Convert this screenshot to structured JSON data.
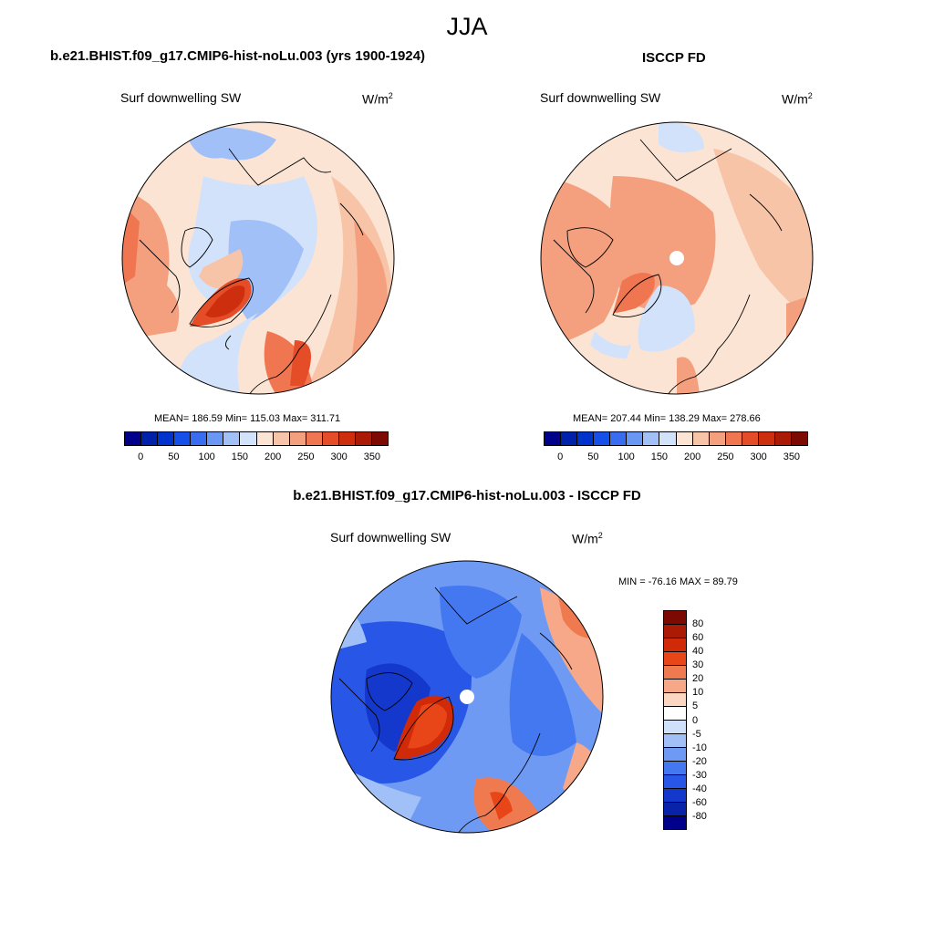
{
  "main_title": "JJA",
  "panel1": {
    "title": "b.e21.BHIST.f09_g17.CMIP6-hist-noLu.003 (yrs 1900-1924)",
    "variable": "Surf downwelling SW",
    "units": "W/m",
    "units_exp": "2",
    "stats": "MEAN= 186.59  Min= 115.03  Max= 311.71"
  },
  "panel2": {
    "title": "ISCCP FD",
    "variable": "Surf downwelling SW",
    "units": "W/m",
    "units_exp": "2",
    "stats": "MEAN= 207.44  Min= 138.29  Max= 278.66"
  },
  "panel3": {
    "title": "b.e21.BHIST.f09_g17.CMIP6-hist-noLu.003 - ISCCP FD",
    "variable": "Surf downwelling SW",
    "units": "W/m",
    "units_exp": "2",
    "stats": "MIN = -76.16 MAX =  89.79"
  },
  "colorbar_abs": {
    "colors": [
      "#00008b",
      "#0022aa",
      "#0033cc",
      "#1650e8",
      "#3a6cf0",
      "#6a96f4",
      "#a2c0f8",
      "#d2e2fb",
      "#fbe4d4",
      "#f8c4a8",
      "#f4a07e",
      "#ef7650",
      "#e44d28",
      "#cc2e0e",
      "#aa1a04",
      "#7d0a02"
    ],
    "labels": [
      "0",
      "50",
      "100",
      "150",
      "200",
      "250",
      "300",
      "350"
    ]
  },
  "colorbar_diff": {
    "colors": [
      "#7d0a02",
      "#aa1a04",
      "#d02a08",
      "#e84618",
      "#f07a50",
      "#f6a888",
      "#fbd6c0",
      "#ffffff",
      "#cfe0fb",
      "#a2c0f8",
      "#6e9af4",
      "#4478f0",
      "#2856e6",
      "#1438cc",
      "#0822aa",
      "#00008b"
    ],
    "labels": [
      "80",
      "60",
      "40",
      "30",
      "20",
      "10",
      "5",
      "0",
      "-5",
      "-10",
      "-20",
      "-30",
      "-40",
      "-60",
      "-80"
    ]
  }
}
